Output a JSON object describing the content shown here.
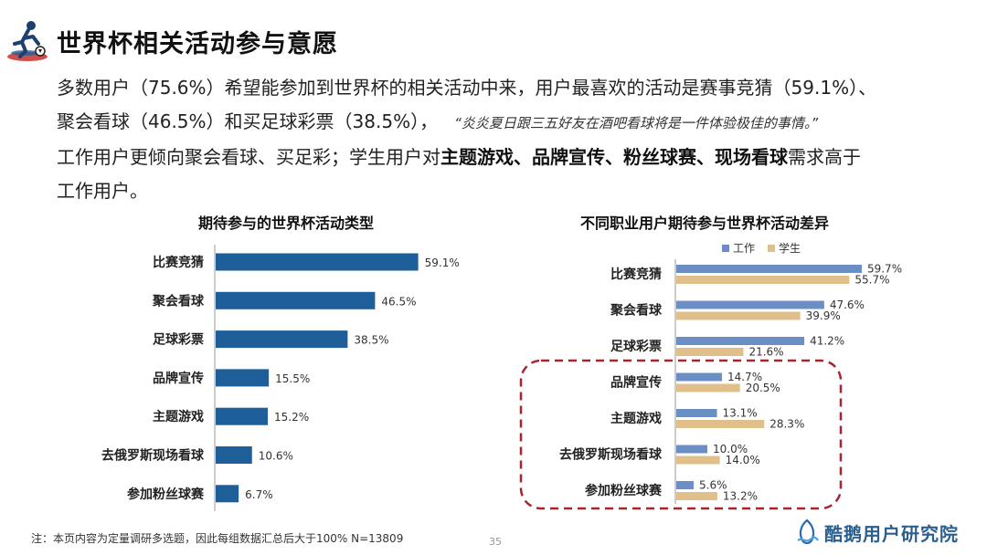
{
  "header": {
    "title": "世界杯相关活动参与意愿"
  },
  "summary": {
    "line1": "多数用户（75.6%）希望能参加到世界杯的相关活动中来，用户最喜欢的活动是赛事竞猜（59.1%）、",
    "line2_text": "聚会看球（46.5%）和买足球彩票（38.5%），",
    "line2_quote": "“炎炎夏日跟三五好友在酒吧看球将是一件体验极佳的事情。”",
    "line3_pre": "工作用户更倾向聚会看球、买足彩；学生用户对",
    "line3_bold": "主题游戏、品牌宣传、粉丝球赛、现场看球",
    "line3_post": "需求高于",
    "line4": "工作用户。"
  },
  "colors": {
    "bar_primary": "#1f5f99",
    "work": "#6b8fc4",
    "student": "#e0bf8a",
    "highlight_border": "#a8242f"
  },
  "chart_data": [
    {
      "type": "bar",
      "orientation": "horizontal",
      "title": "期待参与的世界杯活动类型",
      "categories": [
        "比赛竞猜",
        "聚会看球",
        "足球彩票",
        "品牌宣传",
        "主题游戏",
        "去俄罗斯现场看球",
        "参加粉丝球赛"
      ],
      "values": [
        59.1,
        46.5,
        38.5,
        15.5,
        15.2,
        10.6,
        6.7
      ],
      "value_labels": [
        "59.1%",
        "46.5%",
        "38.5%",
        "15.5%",
        "15.2%",
        "10.6%",
        "6.7%"
      ],
      "unit": "%",
      "xlim": [
        0,
        70
      ],
      "grid": false
    },
    {
      "type": "bar",
      "orientation": "horizontal",
      "title": "不同职业用户期待参与世界杯活动差异",
      "categories": [
        "比赛竞猜",
        "聚会看球",
        "足球彩票",
        "品牌宣传",
        "主题游戏",
        "去俄罗斯现场看球",
        "参加粉丝球赛"
      ],
      "series": [
        {
          "name": "工作",
          "values": [
            59.7,
            47.6,
            41.2,
            14.7,
            13.1,
            10.0,
            5.6
          ],
          "value_labels": [
            "59.7%",
            "47.6%",
            "41.2%",
            "14.7%",
            "13.1%",
            "10.0%",
            "5.6%"
          ]
        },
        {
          "name": "学生",
          "values": [
            55.7,
            39.9,
            21.6,
            20.5,
            28.3,
            14.0,
            13.2
          ],
          "value_labels": [
            "55.7%",
            "39.9%",
            "21.6%",
            "20.5%",
            "28.3%",
            "14.0%",
            "13.2%"
          ]
        }
      ],
      "unit": "%",
      "xlim": [
        0,
        65
      ],
      "legend": "top-center",
      "highlighted_categories": [
        "品牌宣传",
        "主题游戏",
        "去俄罗斯现场看球",
        "参加粉丝球赛"
      ],
      "grid": false
    }
  ],
  "footer": {
    "note": "注：本页内容为定量调研多选题，因此每组数据汇总后大于100%    N=13809",
    "page_number": "35",
    "brand": "酷鹅用户研究院"
  }
}
